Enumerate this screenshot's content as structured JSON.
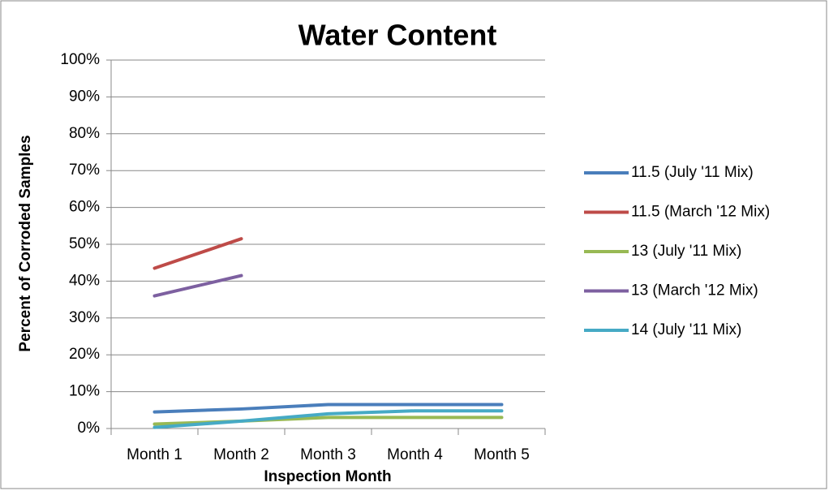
{
  "chart_data": {
    "type": "line",
    "title": "Water Content",
    "x_label": "Inspection Month",
    "y_label": "Percent of Corroded Samples",
    "categories": [
      "Month 1",
      "Month 2",
      "Month 3",
      "Month 4",
      "Month 5"
    ],
    "series": [
      {
        "name": "11.5 (July '11 Mix)",
        "color": "#4a7ebb",
        "values": [
          4.5,
          5.3,
          6.5,
          6.5,
          6.5
        ]
      },
      {
        "name": "11.5 (March '12 Mix)",
        "color": "#be4b48",
        "values": [
          43.5,
          51.5,
          null,
          null,
          null
        ]
      },
      {
        "name": "13 (July '11 Mix)",
        "color": "#98b954",
        "values": [
          1.2,
          2,
          3,
          3,
          3
        ]
      },
      {
        "name": "13 (March '12 Mix)",
        "color": "#7d60a0",
        "values": [
          36,
          41.5,
          null,
          null,
          null
        ]
      },
      {
        "name": "14 (July '11 Mix)",
        "color": "#46aac5",
        "values": [
          0.3,
          2,
          4,
          4.8,
          4.8
        ]
      }
    ],
    "ylim": [
      0,
      100
    ],
    "yticks": [
      {
        "value": 0,
        "label": "0%"
      },
      {
        "value": 10,
        "label": "10%"
      },
      {
        "value": 20,
        "label": "20%"
      },
      {
        "value": 30,
        "label": "30%"
      },
      {
        "value": 40,
        "label": "40%"
      },
      {
        "value": 50,
        "label": "50%"
      },
      {
        "value": 60,
        "label": "60%"
      },
      {
        "value": 70,
        "label": "70%"
      },
      {
        "value": 80,
        "label": "80%"
      },
      {
        "value": 90,
        "label": "90%"
      },
      {
        "value": 100,
        "label": "100%"
      }
    ],
    "grid": true,
    "legend": "right"
  }
}
